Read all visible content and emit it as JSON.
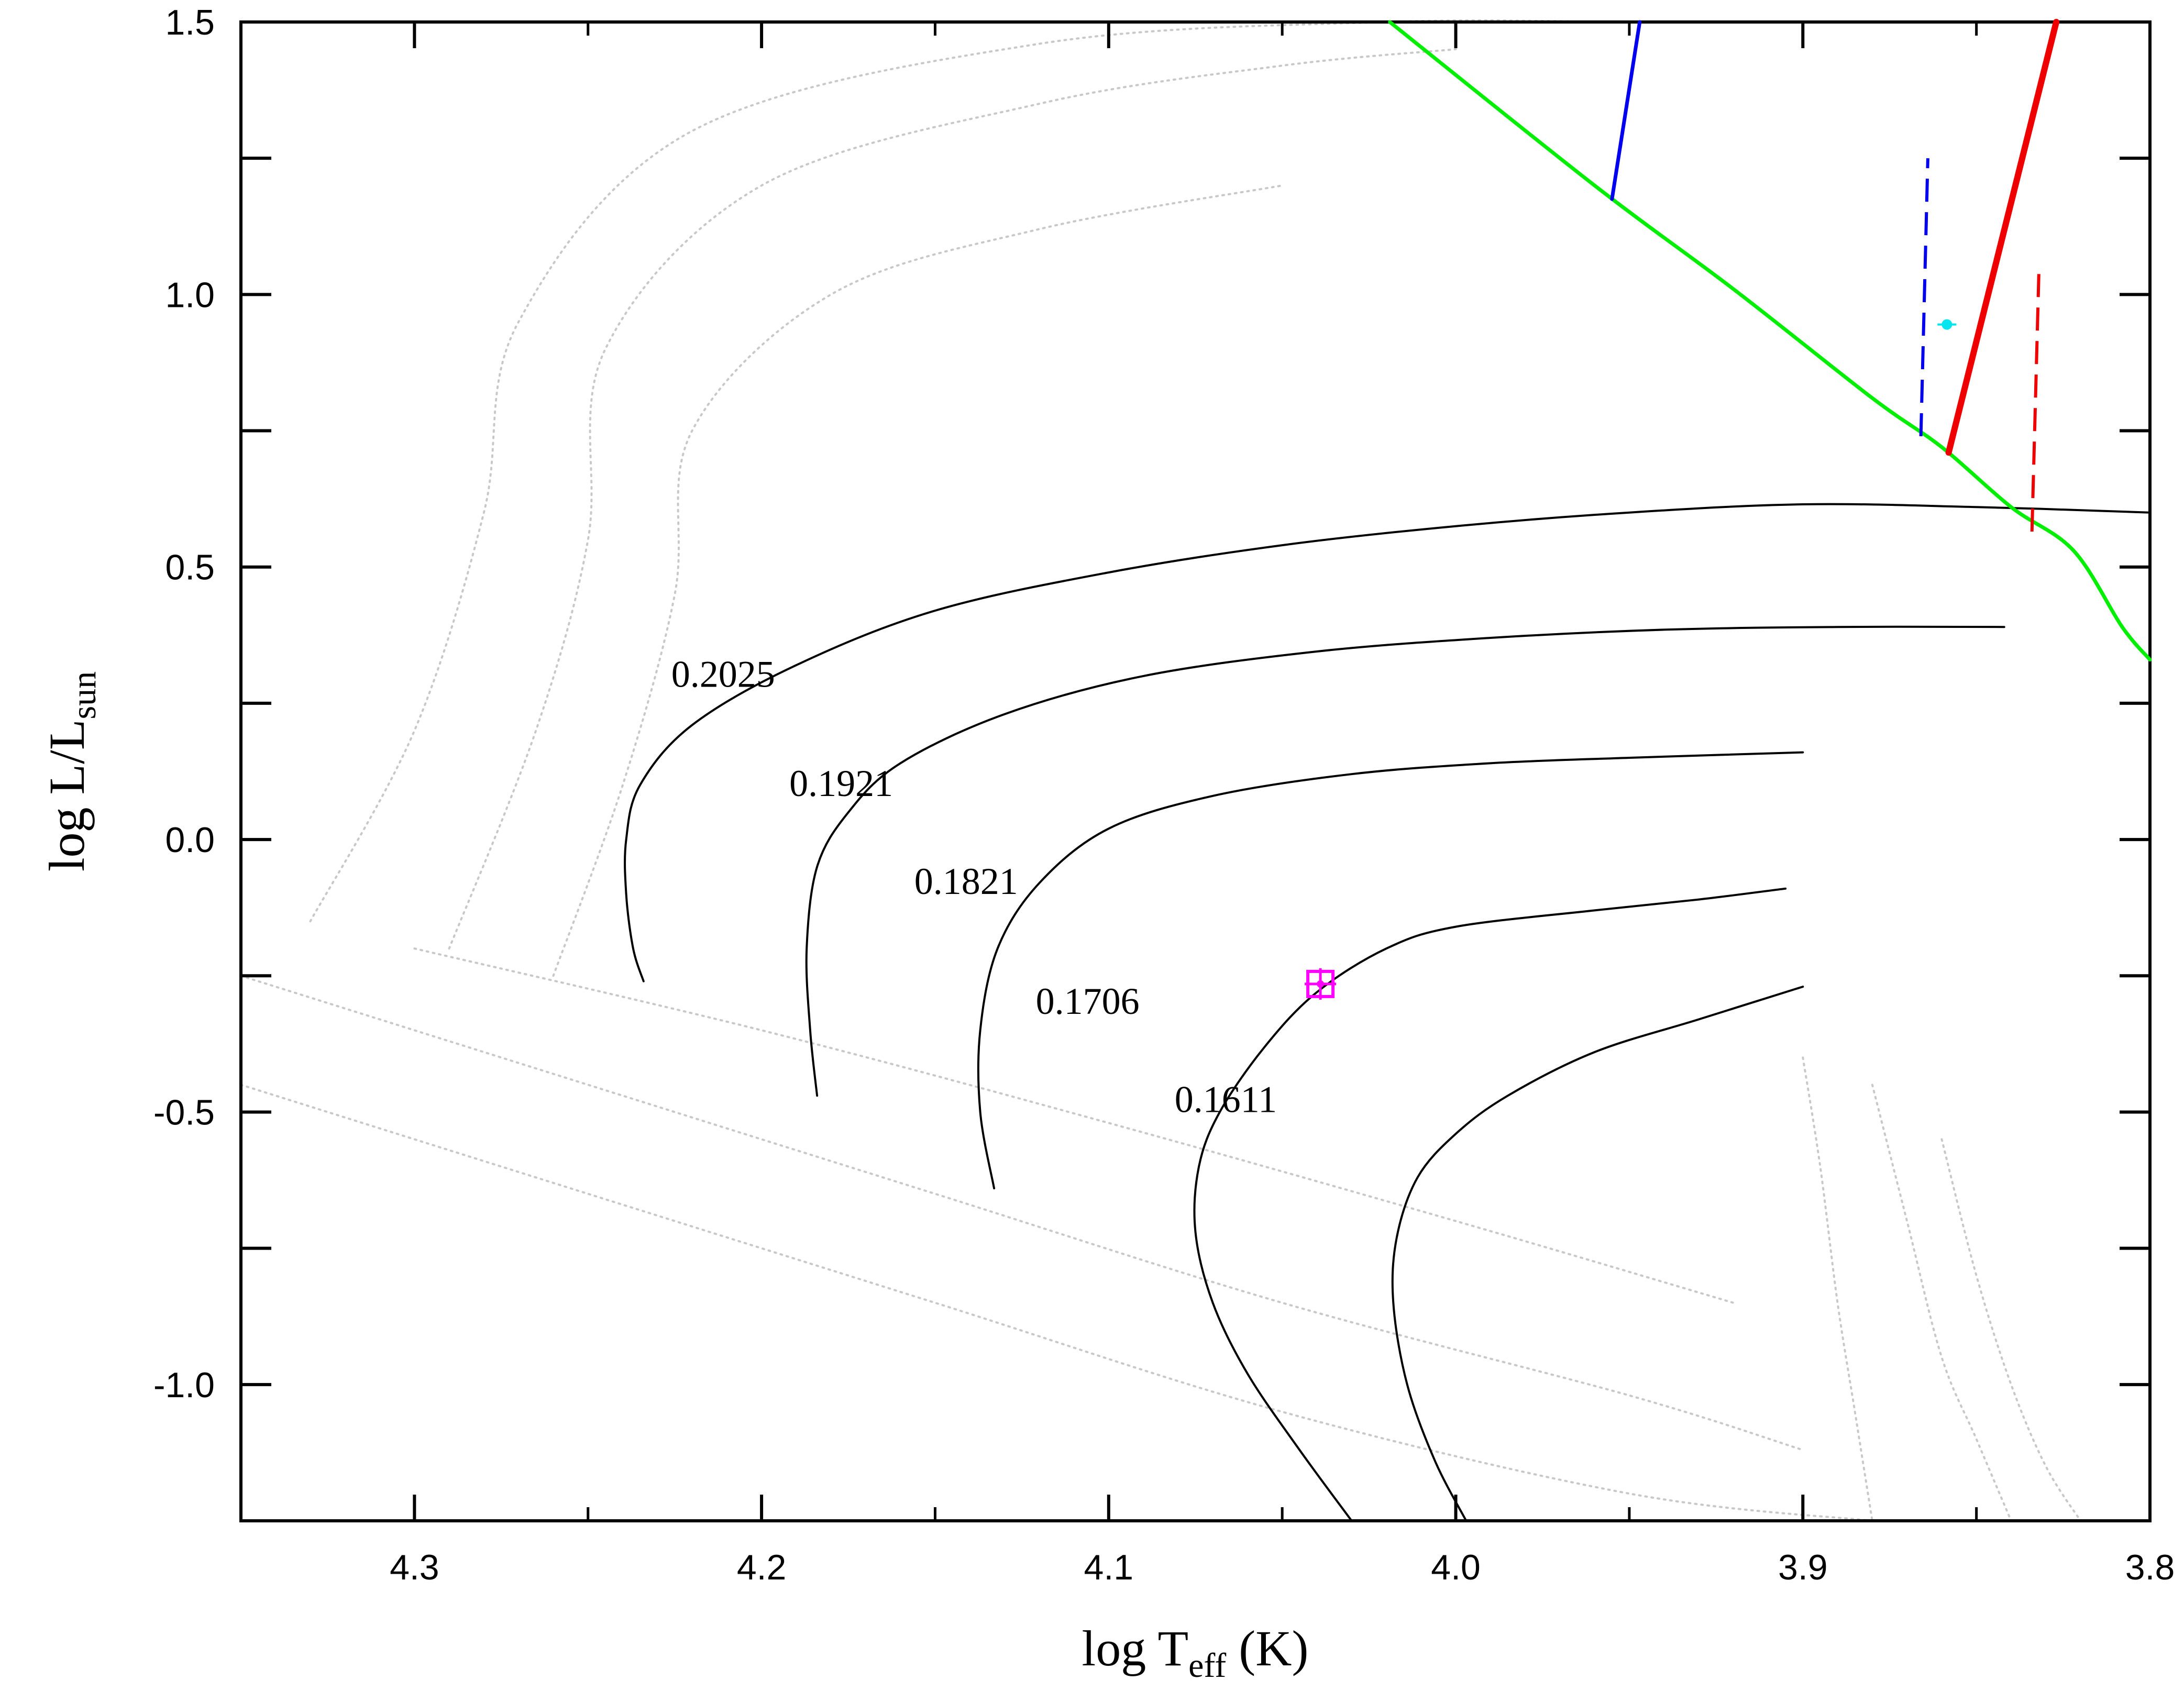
{
  "chart_data": {
    "type": "line",
    "title": "",
    "xlabel": {
      "main": "log T",
      "sub": "eff",
      "unit": " (K)"
    },
    "ylabel": {
      "main": "log L/L",
      "sub": "sun"
    },
    "xlim": [
      4.35,
      3.8
    ],
    "ylim": [
      -1.25,
      1.5
    ],
    "x_ticks": [
      "4.3",
      "4.2",
      "4.1",
      "4.0",
      "3.9",
      "3.8"
    ],
    "y_ticks": [
      "-1.0",
      "-0.5",
      "0.0",
      "0.5",
      "1.0",
      "1.5"
    ],
    "x_tick_values": [
      4.3,
      4.2,
      4.1,
      4.0,
      3.9,
      3.8
    ],
    "y_tick_values": [
      -1.0,
      -0.5,
      0.0,
      0.5,
      1.0,
      1.5
    ],
    "colors": {
      "axes": "#000000",
      "tracks": "#000000",
      "background_tracks": "#c8c8c8",
      "zams": "#00ee00",
      "blue_edge": "#0000ee",
      "red_edge": "#ee0000",
      "target": "#ff00ff",
      "companion": "#00e5ee"
    },
    "series": [
      {
        "name": "0.2025",
        "kind": "track",
        "x": [
          4.234,
          4.237,
          4.239,
          4.239,
          4.235,
          4.22,
          4.19,
          4.15,
          4.1,
          4.05,
          4.0,
          3.95,
          3.9,
          3.85,
          3.8
        ],
        "y": [
          -0.26,
          -0.2,
          -0.1,
          0.0,
          0.1,
          0.21,
          0.32,
          0.42,
          0.49,
          0.54,
          0.575,
          0.6,
          0.615,
          0.61,
          0.6
        ]
      },
      {
        "name": "0.1921",
        "kind": "track",
        "x": [
          4.184,
          4.186,
          4.187,
          4.184,
          4.175,
          4.16,
          4.13,
          4.09,
          4.04,
          3.99,
          3.94,
          3.89,
          3.842
        ],
        "y": [
          -0.47,
          -0.35,
          -0.2,
          -0.05,
          0.05,
          0.14,
          0.23,
          0.3,
          0.345,
          0.37,
          0.385,
          0.39,
          0.39
        ]
      },
      {
        "name": "0.1821",
        "kind": "track",
        "x": [
          4.133,
          4.137,
          4.137,
          4.132,
          4.12,
          4.1,
          4.07,
          4.03,
          3.99,
          3.95,
          3.9
        ],
        "y": [
          -0.64,
          -0.5,
          -0.35,
          -0.2,
          -0.08,
          0.02,
          0.08,
          0.12,
          0.14,
          0.15,
          0.16
        ]
      },
      {
        "name": "0.1706",
        "kind": "track",
        "x": [
          4.03,
          4.045,
          4.06,
          4.07,
          4.075,
          4.074,
          4.068,
          4.055,
          4.04,
          4.02,
          4.0,
          3.96,
          3.93,
          3.905
        ],
        "y": [
          -1.25,
          -1.12,
          -0.98,
          -0.85,
          -0.72,
          -0.6,
          -0.5,
          -0.38,
          -0.28,
          -0.2,
          -0.16,
          -0.13,
          -0.11,
          -0.09
        ]
      },
      {
        "name": "0.1611",
        "kind": "track",
        "x": [
          3.997,
          4.006,
          4.014,
          4.018,
          4.017,
          4.011,
          4.0,
          3.985,
          3.96,
          3.93,
          3.9
        ],
        "y": [
          -1.25,
          -1.14,
          -1.0,
          -0.85,
          -0.73,
          -0.62,
          -0.54,
          -0.47,
          -0.39,
          -0.33,
          -0.27
        ]
      },
      {
        "name": "",
        "kind": "zams",
        "x": [
          4.019,
          3.96,
          3.92,
          3.88,
          3.86,
          3.84,
          3.822,
          3.808,
          3.8
        ],
        "y": [
          1.5,
          1.2,
          1.01,
          0.81,
          0.72,
          0.61,
          0.53,
          0.39,
          0.33
        ]
      },
      {
        "name": "",
        "kind": "blue-edge",
        "style": "solid",
        "x": [
          3.955,
          3.947
        ],
        "y": [
          1.175,
          1.5
        ]
      },
      {
        "name": "",
        "kind": "blue-edge",
        "style": "dashed",
        "x": [
          3.866,
          3.864
        ],
        "y": [
          0.74,
          1.25
        ]
      },
      {
        "name": "",
        "kind": "red-edge",
        "style": "solid",
        "x": [
          3.858,
          3.827
        ],
        "y": [
          0.71,
          1.5
        ]
      },
      {
        "name": "",
        "kind": "red-edge",
        "style": "dashed",
        "x": [
          3.834,
          3.832
        ],
        "y": [
          0.565,
          1.04
        ]
      }
    ],
    "background_tracks": [
      {
        "x": [
          4.33,
          4.3,
          4.28,
          4.27,
          4.22,
          4.12,
          4.02,
          3.95,
          3.9
        ],
        "y": [
          -0.15,
          0.2,
          0.6,
          0.95,
          1.3,
          1.46,
          1.5,
          1.5,
          1.5
        ]
      },
      {
        "x": [
          4.29,
          4.265,
          4.25,
          4.245,
          4.2,
          4.12,
          4.05,
          4.0
        ],
        "y": [
          -0.2,
          0.2,
          0.55,
          0.9,
          1.2,
          1.35,
          1.42,
          1.45
        ]
      },
      {
        "x": [
          4.26,
          4.24,
          4.225,
          4.22,
          4.18,
          4.12,
          4.05
        ],
        "y": [
          -0.25,
          0.1,
          0.45,
          0.75,
          1.0,
          1.12,
          1.2
        ]
      },
      {
        "x": [
          4.35,
          4.25,
          4.15,
          4.05,
          3.95,
          3.88
        ],
        "y": [
          -0.45,
          -0.65,
          -0.85,
          -1.05,
          -1.2,
          -1.25
        ]
      },
      {
        "x": [
          4.35,
          4.25,
          4.15,
          4.05,
          3.95,
          3.9
        ],
        "y": [
          -0.25,
          -0.45,
          -0.65,
          -0.85,
          -1.02,
          -1.12
        ]
      },
      {
        "x": [
          4.3,
          4.2,
          4.1,
          4.0,
          3.92
        ],
        "y": [
          -0.2,
          -0.35,
          -0.52,
          -0.7,
          -0.85
        ]
      },
      {
        "x": [
          3.9,
          3.895,
          3.89,
          3.885,
          3.88
        ],
        "y": [
          -0.4,
          -0.6,
          -0.85,
          -1.05,
          -1.25
        ]
      },
      {
        "x": [
          3.88,
          3.87,
          3.86,
          3.85,
          3.84
        ],
        "y": [
          -0.45,
          -0.7,
          -0.95,
          -1.1,
          -1.25
        ]
      },
      {
        "x": [
          3.86,
          3.85,
          3.84,
          3.83,
          3.82
        ],
        "y": [
          -0.55,
          -0.8,
          -1.0,
          -1.15,
          -1.25
        ]
      }
    ],
    "labels": [
      {
        "text": "0.2025",
        "x": 4.226,
        "y": 0.28
      },
      {
        "text": "0.1921",
        "x": 4.192,
        "y": 0.08
      },
      {
        "text": "0.1821",
        "x": 4.156,
        "y": -0.1
      },
      {
        "text": "0.1706",
        "x": 4.121,
        "y": -0.32
      },
      {
        "text": "0.1611",
        "x": 4.081,
        "y": -0.5
      }
    ],
    "points": [
      {
        "kind": "target",
        "x": 4.039,
        "y": -0.265,
        "marker": "square-with-errorbars"
      },
      {
        "kind": "companion",
        "x": 3.8585,
        "y": 0.945,
        "marker": "dot"
      }
    ]
  }
}
